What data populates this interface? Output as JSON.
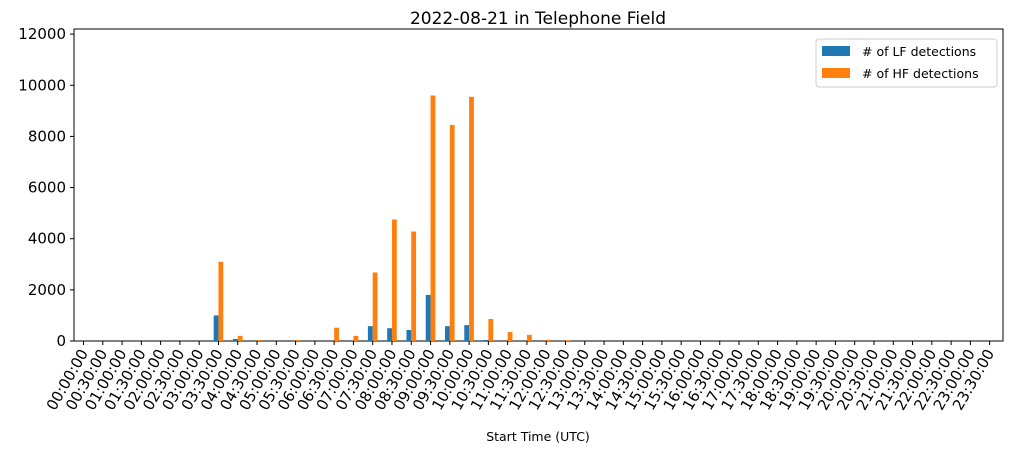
{
  "chart_data": {
    "type": "bar",
    "title": "2022-08-21 in Telephone Field",
    "xlabel": "Start Time (UTC)",
    "ylabel": "",
    "ylim": [
      0,
      12200
    ],
    "yticks": [
      0,
      2000,
      4000,
      6000,
      8000,
      10000,
      12000
    ],
    "legend_position": "top-right",
    "grid": false,
    "categories": [
      "00:00:00",
      "00:30:00",
      "01:00:00",
      "01:30:00",
      "02:00:00",
      "02:30:00",
      "03:00:00",
      "03:30:00",
      "04:00:00",
      "04:30:00",
      "05:00:00",
      "05:30:00",
      "06:00:00",
      "06:30:00",
      "07:00:00",
      "07:30:00",
      "08:00:00",
      "08:30:00",
      "09:00:00",
      "09:30:00",
      "10:00:00",
      "10:30:00",
      "11:00:00",
      "11:30:00",
      "12:00:00",
      "12:30:00",
      "13:00:00",
      "13:30:00",
      "14:00:00",
      "14:30:00",
      "15:00:00",
      "15:30:00",
      "16:00:00",
      "16:30:00",
      "17:00:00",
      "17:30:00",
      "18:00:00",
      "18:30:00",
      "19:00:00",
      "19:30:00",
      "20:00:00",
      "20:30:00",
      "21:00:00",
      "21:30:00",
      "22:00:00",
      "22:30:00",
      "23:00:00",
      "23:30:00"
    ],
    "series": [
      {
        "name": "# of LF detections",
        "color": "#1f77b4",
        "values": [
          0,
          0,
          0,
          0,
          0,
          0,
          0,
          1000,
          80,
          0,
          0,
          0,
          0,
          0,
          0,
          580,
          500,
          430,
          1800,
          580,
          620,
          40,
          0,
          0,
          0,
          0,
          0,
          0,
          0,
          0,
          0,
          0,
          0,
          0,
          0,
          0,
          0,
          0,
          0,
          0,
          0,
          0,
          0,
          0,
          0,
          0,
          0,
          0
        ]
      },
      {
        "name": "# of HF detections",
        "color": "#ff7f0e",
        "values": [
          0,
          0,
          0,
          0,
          0,
          0,
          0,
          3100,
          200,
          40,
          0,
          40,
          0,
          520,
          200,
          2680,
          4750,
          4280,
          9600,
          8450,
          9550,
          860,
          350,
          240,
          50,
          30,
          0,
          0,
          0,
          0,
          0,
          0,
          0,
          0,
          0,
          0,
          0,
          0,
          0,
          0,
          0,
          0,
          0,
          0,
          0,
          0,
          0,
          0
        ]
      }
    ]
  }
}
